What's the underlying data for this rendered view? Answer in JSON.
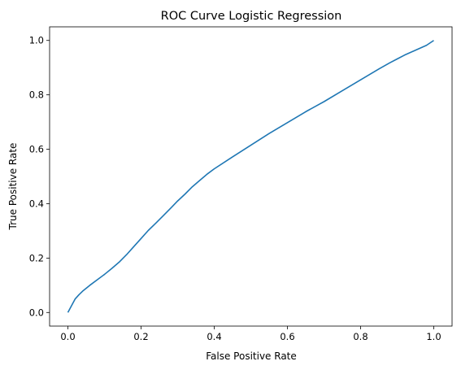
{
  "chart_data": {
    "type": "line",
    "title": "ROC Curve Logistic Regression",
    "xlabel": "False Positive Rate",
    "ylabel": "True Positive Rate",
    "xlim": [
      -0.05,
      1.05
    ],
    "ylim": [
      -0.05,
      1.05
    ],
    "xticks": [
      "0.0",
      "0.2",
      "0.4",
      "0.6",
      "0.8",
      "1.0"
    ],
    "yticks": [
      "0.0",
      "0.2",
      "0.4",
      "0.6",
      "0.8",
      "1.0"
    ],
    "grid": false,
    "line_color": "#1f77b4",
    "series": [
      {
        "x": [
          0.0,
          0.01,
          0.02,
          0.03,
          0.04,
          0.06,
          0.08,
          0.1,
          0.12,
          0.14,
          0.16,
          0.18,
          0.2,
          0.22,
          0.24,
          0.26,
          0.28,
          0.3,
          0.32,
          0.34,
          0.36,
          0.38,
          0.4,
          0.45,
          0.5,
          0.55,
          0.6,
          0.65,
          0.7,
          0.75,
          0.8,
          0.85,
          0.88,
          0.9,
          0.92,
          0.95,
          0.98,
          1.0
        ],
        "y": [
          0.0,
          0.025,
          0.05,
          0.065,
          0.078,
          0.1,
          0.12,
          0.14,
          0.162,
          0.185,
          0.212,
          0.242,
          0.272,
          0.302,
          0.328,
          0.355,
          0.382,
          0.41,
          0.435,
          0.462,
          0.485,
          0.508,
          0.528,
          0.572,
          0.615,
          0.658,
          0.698,
          0.738,
          0.775,
          0.815,
          0.855,
          0.895,
          0.918,
          0.932,
          0.946,
          0.964,
          0.982,
          1.0
        ]
      }
    ]
  }
}
